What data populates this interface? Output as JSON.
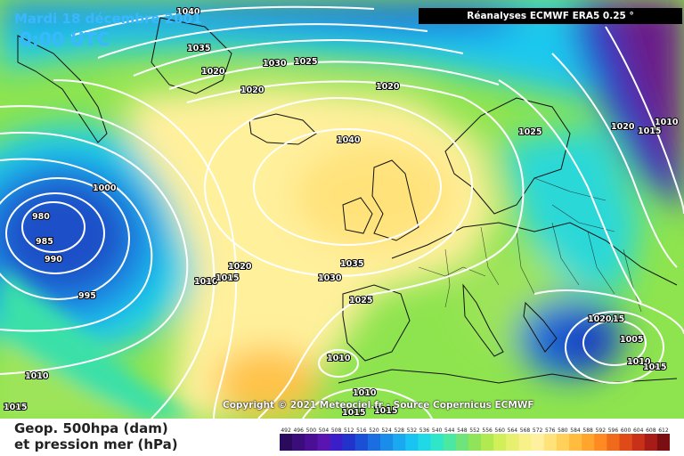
{
  "header": {
    "date": "Mardi 18 décembre 2001",
    "time": "0:00 UTC",
    "source": "Réanalyses ECMWF ERA5 0.25 °"
  },
  "footer": {
    "copyright": "Copyright © 2021 Meteociel.fr - Source Copernicus ECMWF",
    "legend_line1": "Geop. 500hpa (dam)",
    "legend_line2": "et pression mer (hPa)"
  },
  "colors": {
    "yellow": "#fff3a0",
    "orange": "#f7c34a",
    "green": "#7de04a",
    "cyan": "#1ed9e6",
    "blue": "#1f6ad8",
    "darkblue": "#1c2fa0",
    "purple": "#7a1a78"
  },
  "scale": {
    "ticks": [
      "492",
      "496",
      "500",
      "504",
      "508",
      "512",
      "516",
      "520",
      "524",
      "528",
      "532",
      "536",
      "540",
      "544",
      "548",
      "552",
      "556",
      "560",
      "564",
      "568",
      "572",
      "576",
      "580",
      "584",
      "588",
      "592",
      "596",
      "600",
      "604",
      "608",
      "612"
    ],
    "colors": [
      "#2a0a5c",
      "#3a0d7a",
      "#4b0f96",
      "#5a14b0",
      "#3b1ec8",
      "#2233cc",
      "#1a4fd6",
      "#1a6ee0",
      "#1a8cea",
      "#1aa8f0",
      "#1ac4f2",
      "#1fd9e6",
      "#2fe6c8",
      "#4ae8a0",
      "#6ee47a",
      "#8fe45a",
      "#b0ea50",
      "#d0ef58",
      "#e8f070",
      "#f8f088",
      "#fff0a0",
      "#ffe27a",
      "#ffd05a",
      "#ffbc3e",
      "#ffa52e",
      "#ff8a22",
      "#f06a1c",
      "#e04a18",
      "#c83018",
      "#a81c18",
      "#7a0e10"
    ]
  },
  "isobar_labels": [
    {
      "text": "1040",
      "id": "top-1040"
    },
    {
      "text": "1035",
      "id": "nw-1035"
    },
    {
      "text": "1030",
      "id": "north-1030"
    },
    {
      "text": "1025",
      "id": "north-1025"
    },
    {
      "text": "1020",
      "id": "nw-1020"
    },
    {
      "text": "1020",
      "id": "north-1020"
    },
    {
      "text": "1020",
      "id": "center-north-1020"
    },
    {
      "text": "1040",
      "id": "high-1040"
    },
    {
      "text": "1025",
      "id": "scandi-1025"
    },
    {
      "text": "1020",
      "id": "east-1020"
    },
    {
      "text": "1015",
      "id": "east-1015"
    },
    {
      "text": "1010",
      "id": "east-1010"
    },
    {
      "text": "1000",
      "id": "west-1000"
    },
    {
      "text": "980",
      "id": "low-980"
    },
    {
      "text": "985",
      "id": "low-985"
    },
    {
      "text": "990",
      "id": "low-990"
    },
    {
      "text": "995",
      "id": "low-995"
    },
    {
      "text": "1020",
      "id": "mid-1020"
    },
    {
      "text": "1010",
      "id": "mid-1010"
    },
    {
      "text": "1015",
      "id": "mid-1015"
    },
    {
      "text": "1035",
      "id": "europe-1035"
    },
    {
      "text": "1030",
      "id": "europe-1030"
    },
    {
      "text": "1025",
      "id": "iberia-1025"
    },
    {
      "text": "1010",
      "id": "sw-1010a"
    },
    {
      "text": "1015",
      "id": "sw-1015"
    },
    {
      "text": "1010",
      "id": "portugal-1010"
    },
    {
      "text": "1010",
      "id": "africa-1010"
    },
    {
      "text": "1015",
      "id": "africa-1015a"
    },
    {
      "text": "1015",
      "id": "africa-1015b"
    },
    {
      "text": "1020",
      "id": "balkan-1020"
    },
    {
      "text": "15",
      "id": "balkan-15"
    },
    {
      "text": "1005",
      "id": "med-1005"
    },
    {
      "text": "1010",
      "id": "med-1010"
    },
    {
      "text": "1015",
      "id": "med-1015"
    }
  ]
}
